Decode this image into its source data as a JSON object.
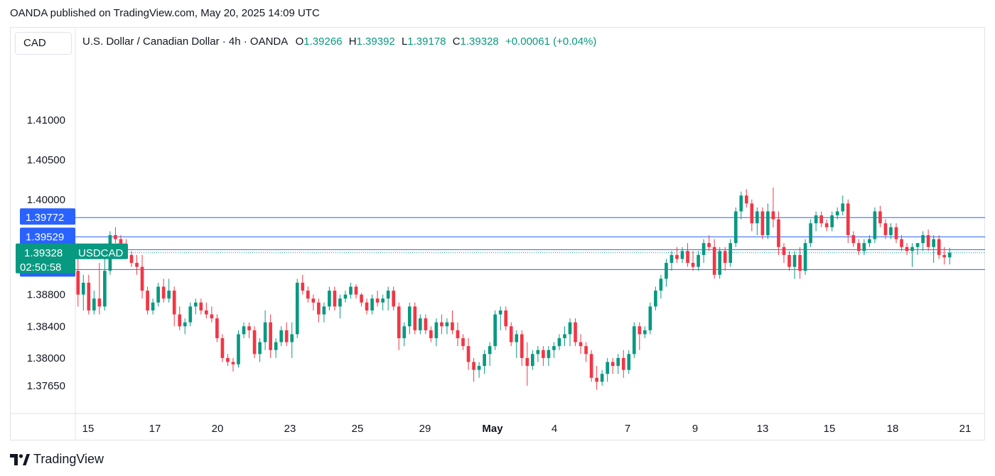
{
  "header": {
    "published": "OANDA published on TradingView.com, May 20, 2025 14:09 UTC"
  },
  "currency_label": "CAD",
  "legend": {
    "title": "U.S. Dollar / Canadian Dollar · 4h · OANDA",
    "o_label": "O",
    "o_value": "1.39266",
    "h_label": "H",
    "h_value": "1.39392",
    "l_label": "L",
    "l_value": "1.39178",
    "c_label": "C",
    "c_value": "1.39328",
    "change": "+0.00061 (+0.04%)"
  },
  "footer": {
    "brand": "TradingView"
  },
  "colors": {
    "up": "#089981",
    "down": "#f23645",
    "line": "#2962ff",
    "current": "#089981",
    "axis_text": "#131722",
    "grid_border": "#e0e3eb"
  },
  "chart_data": {
    "type": "candlestick",
    "symbol": "USDCAD",
    "timeframe": "4h",
    "ylim": [
      1.373,
      1.418
    ],
    "y_ticks": [
      "1.41000",
      "1.40500",
      "1.40000",
      "1.38800",
      "1.38400",
      "1.38000",
      "1.37650"
    ],
    "x_ticks": [
      "15",
      "17",
      "20",
      "23",
      "25",
      "29",
      "May",
      "4",
      "7",
      "9",
      "13",
      "15",
      "18",
      "21"
    ],
    "horizontal_lines": [
      {
        "value": 1.39772,
        "label": "1.39772"
      },
      {
        "value": 1.39529,
        "label": "1.39529"
      },
      {
        "value": 1.39367,
        "label": "1.39367"
      },
      {
        "value": 1.39116,
        "label": "1.39116"
      }
    ],
    "current_price": {
      "value": 1.39328,
      "label": "1.39328",
      "symbol": "USDCAD",
      "countdown": "02:50:58"
    },
    "candles": [
      [
        1.391,
        1.3925,
        1.3865,
        1.388
      ],
      [
        1.388,
        1.3905,
        1.386,
        1.3895
      ],
      [
        1.3895,
        1.3905,
        1.3855,
        1.386
      ],
      [
        1.386,
        1.3885,
        1.3855,
        1.3875
      ],
      [
        1.3875,
        1.392,
        1.3855,
        1.3865
      ],
      [
        1.3865,
        1.393,
        1.386,
        1.391
      ],
      [
        1.391,
        1.396,
        1.3905,
        1.3955
      ],
      [
        1.3955,
        1.3965,
        1.3945,
        1.395
      ],
      [
        1.395,
        1.3955,
        1.3935,
        1.394
      ],
      [
        1.394,
        1.395,
        1.3925,
        1.393
      ],
      [
        1.393,
        1.3935,
        1.3915,
        1.392
      ],
      [
        1.392,
        1.393,
        1.3905,
        1.3915
      ],
      [
        1.3915,
        1.393,
        1.3875,
        1.3885
      ],
      [
        1.3885,
        1.389,
        1.3855,
        1.386
      ],
      [
        1.386,
        1.3875,
        1.3855,
        1.387
      ],
      [
        1.387,
        1.3895,
        1.3865,
        1.389
      ],
      [
        1.389,
        1.39,
        1.387,
        1.3875
      ],
      [
        1.3875,
        1.39,
        1.387,
        1.3885
      ],
      [
        1.3885,
        1.389,
        1.384,
        1.3855
      ],
      [
        1.3855,
        1.3865,
        1.3835,
        1.384
      ],
      [
        1.384,
        1.385,
        1.383,
        1.3845
      ],
      [
        1.3845,
        1.387,
        1.384,
        1.3865
      ],
      [
        1.3865,
        1.3875,
        1.3855,
        1.387
      ],
      [
        1.387,
        1.3875,
        1.3855,
        1.386
      ],
      [
        1.386,
        1.387,
        1.385,
        1.3855
      ],
      [
        1.3855,
        1.3865,
        1.3845,
        1.385
      ],
      [
        1.385,
        1.3855,
        1.382,
        1.3825
      ],
      [
        1.3825,
        1.383,
        1.3795,
        1.38
      ],
      [
        1.38,
        1.3805,
        1.379,
        1.3795
      ],
      [
        1.3795,
        1.38,
        1.3783,
        1.3792
      ],
      [
        1.3792,
        1.3835,
        1.3788,
        1.383
      ],
      [
        1.383,
        1.3845,
        1.3825,
        1.384
      ],
      [
        1.384,
        1.3845,
        1.3825,
        1.3835
      ],
      [
        1.3835,
        1.384,
        1.38,
        1.3805
      ],
      [
        1.3805,
        1.3825,
        1.3795,
        1.382
      ],
      [
        1.382,
        1.386,
        1.381,
        1.3845
      ],
      [
        1.3845,
        1.3855,
        1.38,
        1.381
      ],
      [
        1.381,
        1.3825,
        1.38,
        1.382
      ],
      [
        1.382,
        1.384,
        1.3815,
        1.3835
      ],
      [
        1.3835,
        1.3845,
        1.3815,
        1.382
      ],
      [
        1.382,
        1.3845,
        1.38,
        1.383
      ],
      [
        1.383,
        1.39,
        1.3825,
        1.3895
      ],
      [
        1.3895,
        1.3905,
        1.388,
        1.3885
      ],
      [
        1.3885,
        1.389,
        1.387,
        1.3875
      ],
      [
        1.3875,
        1.388,
        1.386,
        1.387
      ],
      [
        1.387,
        1.3875,
        1.3845,
        1.3855
      ],
      [
        1.3855,
        1.387,
        1.3845,
        1.3865
      ],
      [
        1.3865,
        1.389,
        1.386,
        1.3885
      ],
      [
        1.3885,
        1.389,
        1.386,
        1.3865
      ],
      [
        1.3865,
        1.388,
        1.385,
        1.3875
      ],
      [
        1.3875,
        1.3885,
        1.387,
        1.388
      ],
      [
        1.388,
        1.3895,
        1.3875,
        1.389
      ],
      [
        1.389,
        1.3893,
        1.3875,
        1.388
      ],
      [
        1.388,
        1.3882,
        1.3865,
        1.387
      ],
      [
        1.387,
        1.3875,
        1.3855,
        1.386
      ],
      [
        1.386,
        1.388,
        1.3855,
        1.3875
      ],
      [
        1.3875,
        1.3885,
        1.3865,
        1.387
      ],
      [
        1.387,
        1.388,
        1.386,
        1.3875
      ],
      [
        1.3875,
        1.389,
        1.386,
        1.3885
      ],
      [
        1.3885,
        1.389,
        1.386,
        1.3865
      ],
      [
        1.3865,
        1.387,
        1.381,
        1.3825
      ],
      [
        1.3825,
        1.3845,
        1.3815,
        1.384
      ],
      [
        1.384,
        1.387,
        1.383,
        1.3865
      ],
      [
        1.3865,
        1.387,
        1.383,
        1.3835
      ],
      [
        1.3835,
        1.3855,
        1.383,
        1.385
      ],
      [
        1.385,
        1.3855,
        1.383,
        1.3835
      ],
      [
        1.3835,
        1.384,
        1.382,
        1.3825
      ],
      [
        1.3825,
        1.385,
        1.3815,
        1.3845
      ],
      [
        1.3845,
        1.3855,
        1.383,
        1.384
      ],
      [
        1.384,
        1.385,
        1.383,
        1.3845
      ],
      [
        1.3845,
        1.386,
        1.383,
        1.3835
      ],
      [
        1.3835,
        1.3845,
        1.3815,
        1.3825
      ],
      [
        1.3825,
        1.383,
        1.381,
        1.3815
      ],
      [
        1.3815,
        1.3825,
        1.3785,
        1.3795
      ],
      [
        1.3795,
        1.38,
        1.377,
        1.3785
      ],
      [
        1.3785,
        1.3795,
        1.3775,
        1.379
      ],
      [
        1.379,
        1.381,
        1.378,
        1.3805
      ],
      [
        1.3805,
        1.382,
        1.379,
        1.3815
      ],
      [
        1.3815,
        1.386,
        1.381,
        1.3855
      ],
      [
        1.3855,
        1.3865,
        1.3835,
        1.386
      ],
      [
        1.386,
        1.3865,
        1.3835,
        1.384
      ],
      [
        1.384,
        1.3845,
        1.3815,
        1.382
      ],
      [
        1.382,
        1.3835,
        1.38,
        1.383
      ],
      [
        1.383,
        1.3835,
        1.379,
        1.38
      ],
      [
        1.38,
        1.382,
        1.3765,
        1.379
      ],
      [
        1.379,
        1.381,
        1.3785,
        1.3805
      ],
      [
        1.3805,
        1.3815,
        1.3795,
        1.381
      ],
      [
        1.381,
        1.3815,
        1.379,
        1.38
      ],
      [
        1.38,
        1.3815,
        1.379,
        1.381
      ],
      [
        1.381,
        1.382,
        1.38,
        1.3815
      ],
      [
        1.3815,
        1.383,
        1.381,
        1.3825
      ],
      [
        1.3825,
        1.384,
        1.3815,
        1.383
      ],
      [
        1.383,
        1.385,
        1.3815,
        1.3845
      ],
      [
        1.3845,
        1.385,
        1.3815,
        1.382
      ],
      [
        1.382,
        1.383,
        1.3805,
        1.3815
      ],
      [
        1.3815,
        1.382,
        1.3795,
        1.3805
      ],
      [
        1.3805,
        1.381,
        1.377,
        1.3775
      ],
      [
        1.3775,
        1.379,
        1.376,
        1.377
      ],
      [
        1.377,
        1.3785,
        1.3765,
        1.378
      ],
      [
        1.378,
        1.38,
        1.377,
        1.3795
      ],
      [
        1.3795,
        1.38,
        1.378,
        1.379
      ],
      [
        1.379,
        1.3805,
        1.378,
        1.38
      ],
      [
        1.38,
        1.381,
        1.3775,
        1.3785
      ],
      [
        1.3785,
        1.381,
        1.378,
        1.3805
      ],
      [
        1.3805,
        1.3845,
        1.38,
        1.384
      ],
      [
        1.384,
        1.3845,
        1.381,
        1.383
      ],
      [
        1.383,
        1.384,
        1.3825,
        1.3835
      ],
      [
        1.3835,
        1.387,
        1.383,
        1.3865
      ],
      [
        1.3865,
        1.389,
        1.386,
        1.3885
      ],
      [
        1.3885,
        1.3905,
        1.3875,
        1.39
      ],
      [
        1.39,
        1.3925,
        1.389,
        1.392
      ],
      [
        1.392,
        1.3935,
        1.391,
        1.393
      ],
      [
        1.393,
        1.394,
        1.392,
        1.3925
      ],
      [
        1.3925,
        1.394,
        1.392,
        1.3935
      ],
      [
        1.3935,
        1.3945,
        1.3915,
        1.392
      ],
      [
        1.392,
        1.3935,
        1.391,
        1.3915
      ],
      [
        1.3915,
        1.3935,
        1.391,
        1.393
      ],
      [
        1.393,
        1.395,
        1.392,
        1.3945
      ],
      [
        1.3945,
        1.3955,
        1.3935,
        1.394
      ],
      [
        1.394,
        1.395,
        1.39,
        1.3905
      ],
      [
        1.3905,
        1.394,
        1.39,
        1.3935
      ],
      [
        1.3935,
        1.394,
        1.391,
        1.392
      ],
      [
        1.392,
        1.395,
        1.3915,
        1.3945
      ],
      [
        1.3945,
        1.399,
        1.394,
        1.3985
      ],
      [
        1.3985,
        1.401,
        1.3975,
        1.4005
      ],
      [
        1.4005,
        1.4013,
        1.399,
        1.3995
      ],
      [
        1.3995,
        1.4,
        1.396,
        1.397
      ],
      [
        1.397,
        1.399,
        1.3955,
        1.3985
      ],
      [
        1.3985,
        1.399,
        1.395,
        1.3955
      ],
      [
        1.3955,
        1.3995,
        1.395,
        1.3985
      ],
      [
        1.3985,
        1.4015,
        1.3965,
        1.3975
      ],
      [
        1.3975,
        1.3985,
        1.393,
        1.394
      ],
      [
        1.394,
        1.3945,
        1.392,
        1.393
      ],
      [
        1.393,
        1.3935,
        1.391,
        1.3915
      ],
      [
        1.3915,
        1.3935,
        1.39,
        1.393
      ],
      [
        1.393,
        1.394,
        1.39,
        1.391
      ],
      [
        1.391,
        1.395,
        1.3905,
        1.3945
      ],
      [
        1.3945,
        1.3975,
        1.394,
        1.397
      ],
      [
        1.397,
        1.3985,
        1.396,
        1.398
      ],
      [
        1.398,
        1.3985,
        1.3965,
        1.397
      ],
      [
        1.397,
        1.3975,
        1.396,
        1.3965
      ],
      [
        1.3965,
        1.3985,
        1.396,
        1.398
      ],
      [
        1.398,
        1.399,
        1.3975,
        1.3985
      ],
      [
        1.3985,
        1.4005,
        1.398,
        1.3995
      ],
      [
        1.3995,
        1.4,
        1.3945,
        1.3955
      ],
      [
        1.3955,
        1.396,
        1.394,
        1.3945
      ],
      [
        1.3945,
        1.395,
        1.393,
        1.3935
      ],
      [
        1.3935,
        1.395,
        1.393,
        1.3945
      ],
      [
        1.3945,
        1.3955,
        1.394,
        1.395
      ],
      [
        1.395,
        1.399,
        1.3945,
        1.3985
      ],
      [
        1.3985,
        1.3992,
        1.3965,
        1.397
      ],
      [
        1.397,
        1.3975,
        1.395,
        1.3955
      ],
      [
        1.3955,
        1.397,
        1.395,
        1.3965
      ],
      [
        1.3965,
        1.397,
        1.3945,
        1.395
      ],
      [
        1.395,
        1.3955,
        1.3935,
        1.394
      ],
      [
        1.394,
        1.3945,
        1.393,
        1.3935
      ],
      [
        1.3935,
        1.3945,
        1.3915,
        1.394
      ],
      [
        1.394,
        1.3945,
        1.393,
        1.3945
      ],
      [
        1.3945,
        1.396,
        1.3935,
        1.3955
      ],
      [
        1.3955,
        1.3962,
        1.3935,
        1.394
      ],
      [
        1.394,
        1.3955,
        1.392,
        1.395
      ],
      [
        1.395,
        1.3955,
        1.3925,
        1.393
      ],
      [
        1.393,
        1.394,
        1.3918,
        1.3927
      ],
      [
        1.3927,
        1.3939,
        1.3918,
        1.3933
      ]
    ]
  }
}
